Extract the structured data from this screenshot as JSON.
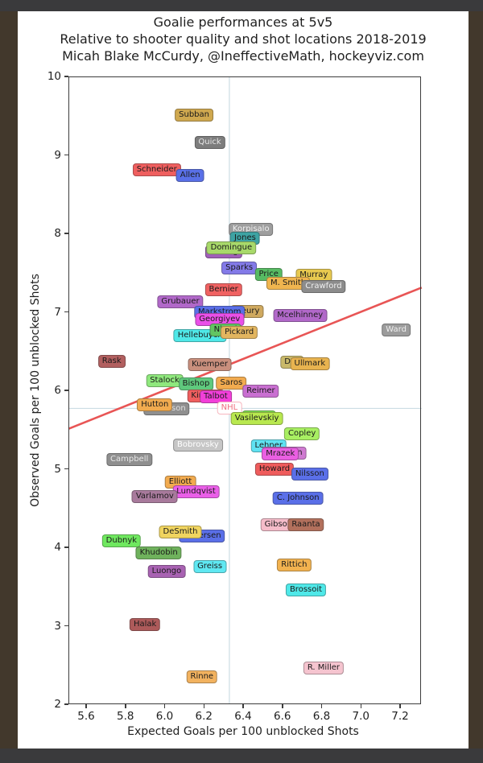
{
  "titles": {
    "line1": "Goalie performances at 5v5",
    "line2": "Relative to shooter quality and shot locations 2018-2019",
    "line3": "Micah Blake McCurdy, @IneffectiveMath, hockeyviz.com"
  },
  "chart_data": {
    "type": "scatter",
    "title": "Goalie performances at 5v5",
    "subtitle": "Relative to shooter quality and shot locations 2018-2019",
    "credit": "Micah Blake McCurdy, @IneffectiveMath, hockeyviz.com",
    "xlabel": "Expected Goals per 100 unblocked Shots",
    "ylabel": "Observed Goals per 100 unblocked Shots",
    "xlim": [
      5.51,
      7.31
    ],
    "ylim": [
      2,
      10
    ],
    "xticks": [
      "5.6",
      "5.8",
      "6.0",
      "6.2",
      "6.4",
      "6.6",
      "6.8",
      "7.0",
      "7.2"
    ],
    "yticks": [
      "2",
      "3",
      "4",
      "5",
      "6",
      "7",
      "8",
      "9",
      "10"
    ],
    "grid": false,
    "reference_lines": {
      "identity_line": {
        "x1": 5.51,
        "y1": 5.51,
        "x2": 7.31,
        "y2": 7.31,
        "color": "#e85555"
      },
      "nhl_mean_vertical_x": 6.33,
      "nhl_mean_horizontal_y": 5.77,
      "crosshair_color": "#ccdde4"
    },
    "points": [
      {
        "label": "Subban",
        "x": 6.15,
        "y": 9.51,
        "bg": "#cfa84f"
      },
      {
        "label": "Quick",
        "x": 6.23,
        "y": 9.16,
        "bg": "#7d7d7d",
        "fg": "#e8e8e8"
      },
      {
        "label": "Schneider",
        "x": 5.96,
        "y": 8.81,
        "bg": "#ef5f5f"
      },
      {
        "label": "Allen",
        "x": 6.13,
        "y": 8.74,
        "bg": "#5970e8"
      },
      {
        "label": "Korpisalo",
        "x": 6.44,
        "y": 8.05,
        "bg": "#9e9e9e",
        "fg": "#f0f0f0"
      },
      {
        "label": "Jones",
        "x": 6.41,
        "y": 7.94,
        "bg": "#3da3a3"
      },
      {
        "label": "Darling",
        "x": 6.3,
        "y": 7.76,
        "bg": "#a05fb8"
      },
      {
        "label": "Domingue",
        "x": 6.34,
        "y": 7.82,
        "bg": "#a8d96a"
      },
      {
        "label": "Sparks",
        "x": 6.38,
        "y": 7.56,
        "bg": "#837ae8"
      },
      {
        "label": "Price",
        "x": 6.53,
        "y": 7.48,
        "bg": "#57bb63"
      },
      {
        "label": "Murray",
        "x": 6.76,
        "y": 7.47,
        "bg": "#e8c94f"
      },
      {
        "label": "M. Smith",
        "x": 6.63,
        "y": 7.36,
        "bg": "#f0b54f"
      },
      {
        "label": "Crawford",
        "x": 6.81,
        "y": 7.32,
        "bg": "#8c8c8c",
        "fg": "#f0f0f0"
      },
      {
        "label": "Bernier",
        "x": 6.3,
        "y": 7.28,
        "bg": "#f06262"
      },
      {
        "label": "Grubauer",
        "x": 6.08,
        "y": 7.13,
        "bg": "#b168c9"
      },
      {
        "label": "Fleury",
        "x": 6.42,
        "y": 7.01,
        "bg": "#cfa95f"
      },
      {
        "label": "Markstrom",
        "x": 6.28,
        "y": 6.99,
        "bg": "#5a6fe8"
      },
      {
        "label": "Georgiyev",
        "x": 6.28,
        "y": 6.9,
        "bg": "#ea4fe8"
      },
      {
        "label": "Mcelhinney",
        "x": 6.69,
        "y": 6.95,
        "bg": "#b168c9"
      },
      {
        "label": "Hellebuyck",
        "x": 6.18,
        "y": 6.7,
        "bg": "#4fe8e8"
      },
      {
        "label": "Niemi",
        "x": 6.31,
        "y": 6.77,
        "bg": "#62c462"
      },
      {
        "label": "Pickard",
        "x": 6.38,
        "y": 6.74,
        "bg": "#e2b55f"
      },
      {
        "label": "Ward",
        "x": 7.18,
        "y": 6.77,
        "bg": "#9c9c9c",
        "fg": "#f0f0f0"
      },
      {
        "label": "Rask",
        "x": 5.73,
        "y": 6.37,
        "bg": "#b25f5f"
      },
      {
        "label": "Kuemper",
        "x": 6.23,
        "y": 6.33,
        "bg": "#c98f7d"
      },
      {
        "label": "Dell",
        "x": 6.65,
        "y": 6.36,
        "bg": "#c9b96a"
      },
      {
        "label": "Ullmark",
        "x": 6.74,
        "y": 6.34,
        "bg": "#e8b34f"
      },
      {
        "label": "Stalock",
        "x": 6.0,
        "y": 6.12,
        "bg": "#8fe87d"
      },
      {
        "label": "Bishop",
        "x": 6.16,
        "y": 6.08,
        "bg": "#5fc97d"
      },
      {
        "label": "Saros",
        "x": 6.34,
        "y": 6.09,
        "bg": "#f2ab4f"
      },
      {
        "label": "Reimer",
        "x": 6.49,
        "y": 5.99,
        "bg": "#c96fd1"
      },
      {
        "label": "Kinkaid",
        "x": 6.21,
        "y": 5.93,
        "bg": "#ef5f5f"
      },
      {
        "label": "Talbot",
        "x": 6.26,
        "y": 5.92,
        "bg": "#f23fd9"
      },
      {
        "label": "Anderson",
        "x": 6.01,
        "y": 5.76,
        "bg": "#8f8f8f",
        "fg": "#e0e0e0"
      },
      {
        "label": "Hutton",
        "x": 5.95,
        "y": 5.82,
        "bg": "#f2ab4f"
      },
      {
        "label": "NHL",
        "x": 6.33,
        "y": 5.77,
        "bg": "#ffffff",
        "fg": "#ef7080"
      },
      {
        "label": "Holtby",
        "x": 6.48,
        "y": 5.66,
        "bg": "#7dd94f"
      },
      {
        "label": "Vasilevskiy",
        "x": 6.47,
        "y": 5.64,
        "bg": "#b8e84f"
      },
      {
        "label": "Copley",
        "x": 6.7,
        "y": 5.45,
        "bg": "#a8ef62"
      },
      {
        "label": "Bobrovsky",
        "x": 6.17,
        "y": 5.3,
        "bg": "#c6c6c6",
        "fg": "#ffffff"
      },
      {
        "label": "Lehner",
        "x": 6.53,
        "y": 5.29,
        "bg": "#5fe2f2"
      },
      {
        "label": "Koskinen",
        "x": 6.61,
        "y": 5.2,
        "bg": "#cf7ad1"
      },
      {
        "label": "Mrazek",
        "x": 6.59,
        "y": 5.19,
        "bg": "#ea5fe2"
      },
      {
        "label": "Campbell",
        "x": 5.82,
        "y": 5.12,
        "bg": "#8f8f8f",
        "fg": "#e8e8e8"
      },
      {
        "label": "Howard",
        "x": 6.56,
        "y": 4.99,
        "bg": "#ef5c5c"
      },
      {
        "label": "Nilsson",
        "x": 6.74,
        "y": 4.93,
        "bg": "#5a6fe8"
      },
      {
        "label": "Elliott",
        "x": 6.08,
        "y": 4.83,
        "bg": "#f2ab4f"
      },
      {
        "label": "Lundqvist",
        "x": 6.16,
        "y": 4.71,
        "bg": "#ea5fe8"
      },
      {
        "label": "Varlamov",
        "x": 5.95,
        "y": 4.65,
        "bg": "#a87a9c"
      },
      {
        "label": "C. Johnson",
        "x": 6.68,
        "y": 4.63,
        "bg": "#5a6fe8"
      },
      {
        "label": "Gibson",
        "x": 6.58,
        "y": 4.29,
        "bg": "#f5bcc9"
      },
      {
        "label": "Raanta",
        "x": 6.72,
        "y": 4.29,
        "bg": "#b2705c"
      },
      {
        "label": "Andersen",
        "x": 6.19,
        "y": 4.14,
        "bg": "#5a6fe8"
      },
      {
        "label": "DeSmith",
        "x": 6.08,
        "y": 4.19,
        "bg": "#f0d45f"
      },
      {
        "label": "Dubnyk",
        "x": 5.78,
        "y": 4.08,
        "bg": "#6fe85f"
      },
      {
        "label": "Khudobin",
        "x": 5.97,
        "y": 3.93,
        "bg": "#6fb25c"
      },
      {
        "label": "Greiss",
        "x": 6.23,
        "y": 3.75,
        "bg": "#5fe8f2"
      },
      {
        "label": "Luongo",
        "x": 6.01,
        "y": 3.69,
        "bg": "#a862b2"
      },
      {
        "label": "Rittich",
        "x": 6.66,
        "y": 3.77,
        "bg": "#f2b24f"
      },
      {
        "label": "Brossoit",
        "x": 6.72,
        "y": 3.46,
        "bg": "#4fe8e8"
      },
      {
        "label": "Halak",
        "x": 5.9,
        "y": 3.02,
        "bg": "#ad5a5a"
      },
      {
        "label": "R. Miller",
        "x": 6.81,
        "y": 2.46,
        "bg": "#f5c4cf"
      },
      {
        "label": "Rinne",
        "x": 6.19,
        "y": 2.35,
        "bg": "#f2b25f"
      }
    ]
  }
}
